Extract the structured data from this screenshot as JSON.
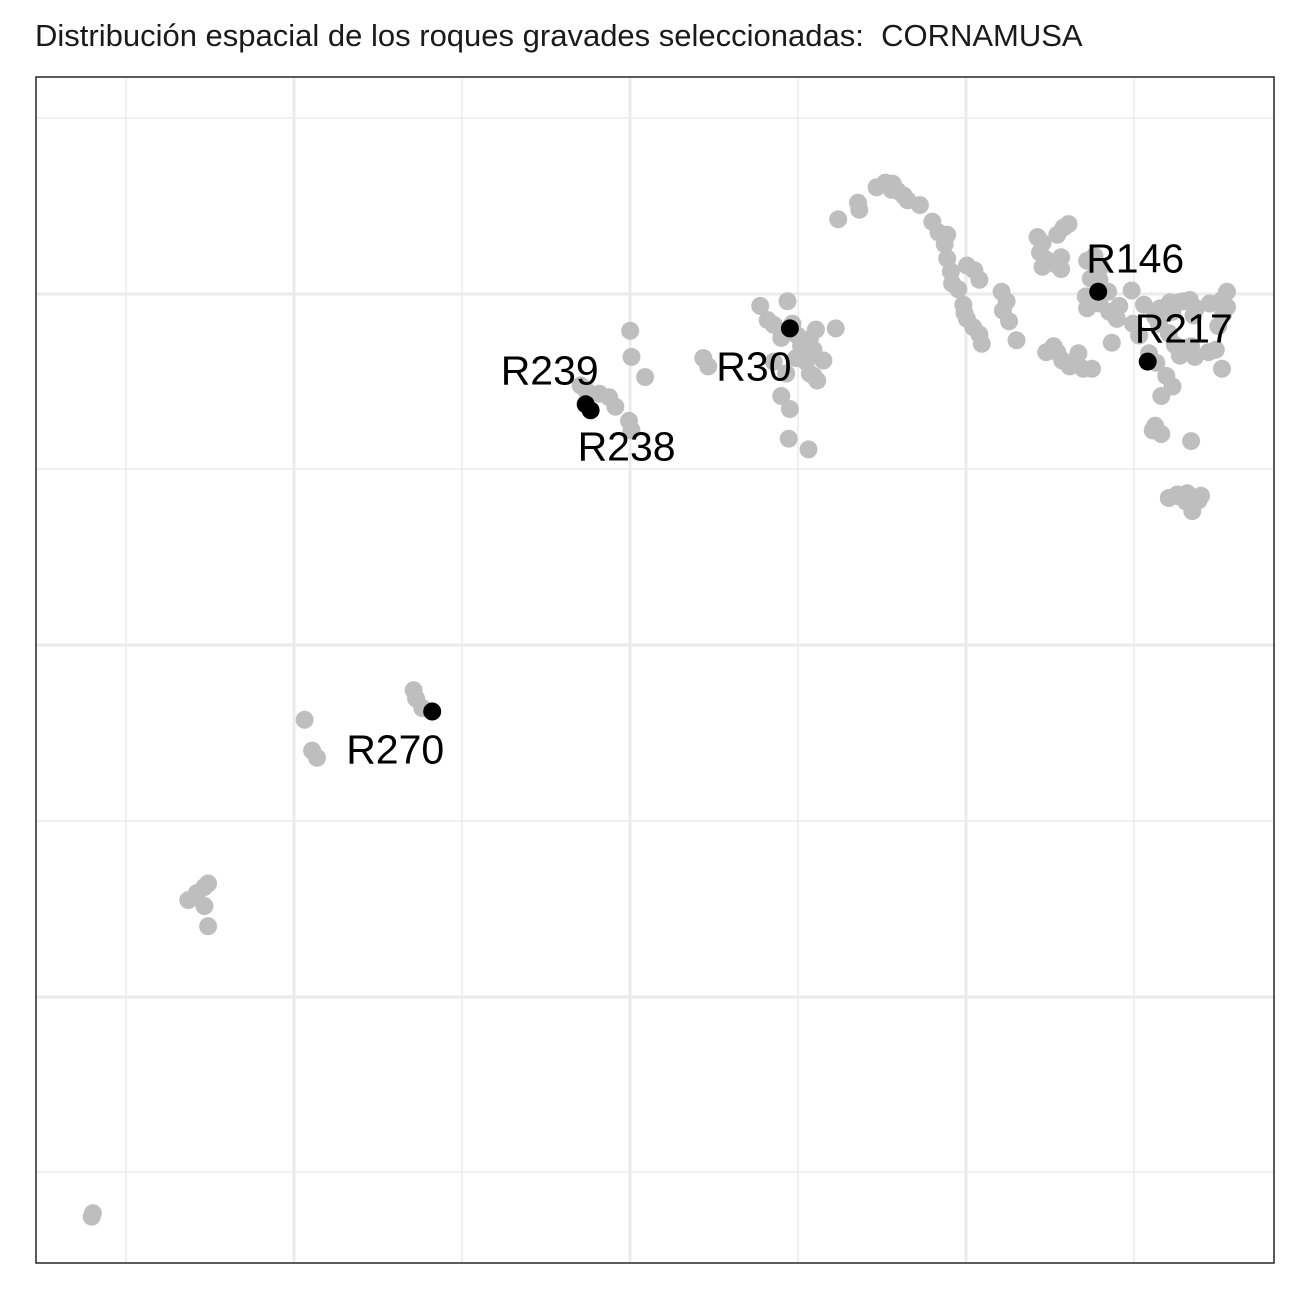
{
  "chart_data": {
    "type": "scatter",
    "title": "Distribución espacial de los roques gravades seleccionadas:  CORNAMUSA",
    "xlabel": "",
    "ylabel": "",
    "xlim": [
      0,
      100
    ],
    "ylim": [
      0,
      100
    ],
    "grid": true,
    "legend": "none",
    "colors": {
      "background": "#ebebeb",
      "panel": "#ffffff",
      "grid": "#ebebeb",
      "border": "#333333",
      "other": "#bebebe",
      "selected": "#000000"
    },
    "series": [
      {
        "role": "other",
        "points": [
          [
            4.5,
            3.9
          ],
          [
            4.6,
            4.2
          ],
          [
            12.3,
            30.6
          ],
          [
            13.0,
            31.2
          ],
          [
            13.6,
            31.7
          ],
          [
            13.9,
            32.0
          ],
          [
            13.6,
            30.1
          ],
          [
            13.9,
            28.4
          ],
          [
            21.7,
            45.8
          ],
          [
            22.3,
            43.2
          ],
          [
            22.7,
            42.6
          ],
          [
            30.5,
            48.3
          ],
          [
            30.7,
            47.6
          ],
          [
            31.2,
            46.8
          ],
          [
            44.0,
            74.0
          ],
          [
            44.5,
            73.5
          ],
          [
            45.5,
            73.3
          ],
          [
            46.3,
            73.0
          ],
          [
            46.8,
            72.2
          ],
          [
            47.9,
            71.0
          ],
          [
            48.1,
            70.2
          ],
          [
            48.0,
            78.6
          ],
          [
            48.1,
            76.4
          ],
          [
            49.2,
            74.7
          ],
          [
            53.9,
            76.3
          ],
          [
            54.3,
            75.6
          ],
          [
            58.5,
            80.7
          ],
          [
            59.1,
            79.5
          ],
          [
            59.6,
            79.1
          ],
          [
            60.7,
            81.1
          ],
          [
            61.1,
            79.2
          ],
          [
            61.5,
            78.2
          ],
          [
            60.2,
            78.0
          ],
          [
            61.8,
            77.3
          ],
          [
            62.5,
            77.9
          ],
          [
            63.0,
            78.7
          ],
          [
            62.8,
            77.0
          ],
          [
            62.2,
            76.0
          ],
          [
            59.6,
            76.0
          ],
          [
            61.4,
            76.3
          ],
          [
            60.6,
            75.0
          ],
          [
            62.5,
            75.0
          ],
          [
            60.2,
            73.1
          ],
          [
            60.9,
            72.0
          ],
          [
            63.1,
            74.4
          ],
          [
            63.6,
            76.1
          ],
          [
            60.8,
            69.5
          ],
          [
            62.4,
            68.6
          ],
          [
            64.6,
            78.8
          ],
          [
            62.8,
            74.8
          ],
          [
            64.8,
            88.0
          ],
          [
            66.4,
            89.4
          ],
          [
            67.9,
            90.7
          ],
          [
            66.5,
            88.8
          ],
          [
            68.6,
            91.1
          ],
          [
            69.2,
            91.0
          ],
          [
            69.6,
            90.4
          ],
          [
            70.1,
            90.0
          ],
          [
            69.1,
            90.5
          ],
          [
            70.4,
            89.6
          ],
          [
            71.4,
            89.2
          ],
          [
            72.4,
            87.8
          ],
          [
            72.9,
            86.9
          ],
          [
            73.6,
            86.7
          ],
          [
            73.4,
            85.9
          ],
          [
            73.6,
            84.7
          ],
          [
            73.9,
            83.6
          ],
          [
            74.0,
            82.6
          ],
          [
            75.0,
            80.1
          ],
          [
            75.2,
            79.6
          ],
          [
            75.7,
            78.9
          ],
          [
            76.2,
            78.3
          ],
          [
            76.4,
            77.5
          ],
          [
            75.2,
            84.1
          ],
          [
            75.8,
            83.7
          ],
          [
            76.2,
            82.9
          ],
          [
            74.5,
            82.1
          ],
          [
            74.9,
            80.8
          ],
          [
            78.0,
            81.9
          ],
          [
            78.4,
            81.1
          ],
          [
            78.1,
            80.3
          ],
          [
            78.6,
            79.4
          ],
          [
            79.2,
            77.8
          ],
          [
            80.9,
            86.5
          ],
          [
            81.3,
            86.0
          ],
          [
            81.1,
            85.2
          ],
          [
            81.6,
            84.6
          ],
          [
            82.4,
            84.2
          ],
          [
            82.8,
            83.8
          ],
          [
            82.5,
            86.7
          ],
          [
            83.0,
            87.3
          ],
          [
            83.4,
            87.6
          ],
          [
            82.8,
            84.8
          ],
          [
            81.3,
            84.0
          ],
          [
            84.9,
            84.5
          ],
          [
            85.5,
            84.9
          ],
          [
            86.0,
            84.0
          ],
          [
            85.2,
            83.0
          ],
          [
            85.9,
            82.9
          ],
          [
            86.6,
            81.9
          ],
          [
            84.8,
            81.5
          ],
          [
            84.9,
            80.5
          ],
          [
            85.9,
            80.9
          ],
          [
            86.7,
            80.2
          ],
          [
            87.5,
            80.7
          ],
          [
            88.5,
            82.0
          ],
          [
            87.3,
            79.6
          ],
          [
            89.5,
            80.8
          ],
          [
            90.4,
            79.8
          ],
          [
            90.8,
            80.5
          ],
          [
            91.6,
            81.0
          ],
          [
            92.3,
            81.0
          ],
          [
            92.7,
            81.1
          ],
          [
            93.2,
            81.2
          ],
          [
            93.7,
            80.5
          ],
          [
            94.8,
            80.9
          ],
          [
            95.8,
            81.2
          ],
          [
            96.2,
            81.9
          ],
          [
            91.8,
            80.2
          ],
          [
            90.7,
            79.2
          ],
          [
            91.5,
            78.4
          ],
          [
            92.0,
            77.4
          ],
          [
            92.4,
            76.5
          ],
          [
            93.3,
            77.3
          ],
          [
            93.6,
            76.4
          ],
          [
            94.7,
            76.8
          ],
          [
            95.3,
            77.0
          ],
          [
            95.5,
            79.0
          ],
          [
            96.2,
            80.6
          ],
          [
            95.9,
            80.0
          ],
          [
            93.5,
            79.9
          ],
          [
            95.8,
            75.4
          ],
          [
            81.6,
            76.8
          ],
          [
            82.2,
            77.3
          ],
          [
            82.5,
            76.8
          ],
          [
            82.9,
            76.1
          ],
          [
            83.5,
            75.6
          ],
          [
            84.2,
            76.7
          ],
          [
            84.6,
            75.4
          ],
          [
            85.3,
            75.4
          ],
          [
            86.9,
            77.6
          ],
          [
            88.6,
            79.2
          ],
          [
            89.1,
            78.2
          ],
          [
            89.9,
            76.7
          ],
          [
            90.5,
            75.9
          ],
          [
            91.3,
            74.8
          ],
          [
            91.8,
            73.9
          ],
          [
            90.9,
            73.1
          ],
          [
            90.4,
            70.6
          ],
          [
            90.2,
            70.2
          ],
          [
            90.9,
            69.9
          ],
          [
            93.3,
            69.3
          ],
          [
            91.5,
            64.5
          ],
          [
            92.2,
            64.8
          ],
          [
            92.4,
            64.6
          ],
          [
            92.9,
            64.2
          ],
          [
            93.5,
            64.0
          ],
          [
            93.4,
            63.4
          ],
          [
            94.1,
            64.7
          ],
          [
            93.9,
            64.3
          ],
          [
            93.0,
            64.9
          ]
        ]
      },
      {
        "role": "selected",
        "points": [
          {
            "label": "R239",
            "x": 44.4,
            "y": 72.4
          },
          {
            "label": "R238",
            "x": 44.8,
            "y": 71.9
          },
          {
            "label": "R30",
            "x": 60.9,
            "y": 78.8
          },
          {
            "label": "R146",
            "x": 85.8,
            "y": 81.9
          },
          {
            "label": "R217",
            "x": 89.8,
            "y": 76.0
          },
          {
            "label": "R270",
            "x": 32.0,
            "y": 46.5
          }
        ]
      }
    ]
  }
}
